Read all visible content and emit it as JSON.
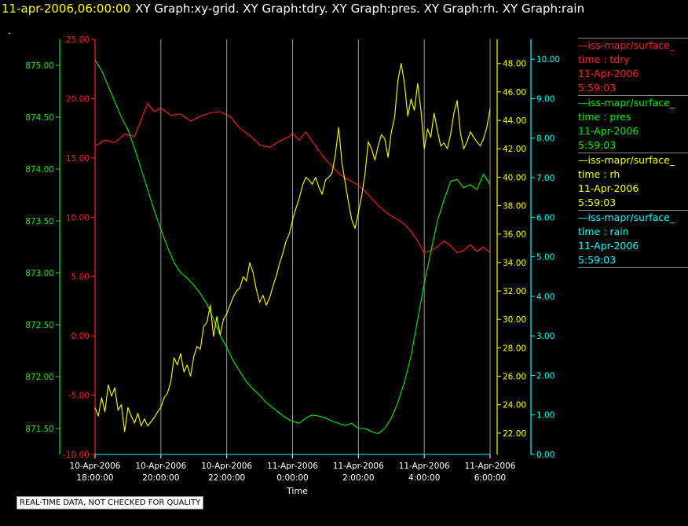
{
  "header": {
    "timestamp": "11-apr-2006,06:00:00",
    "titles": "XY Graph:xy-grid.  XY Graph:tdry.  XY Graph:pres.  XY Graph:rh.  XY Graph:rain",
    "mark": "."
  },
  "legend": [
    {
      "name": "iss-mapr/surface_",
      "line2": "time : tdry",
      "line3": "11-Apr-2006",
      "line4": "5:59:03",
      "color": "#ff2020"
    },
    {
      "name": "iss-mapr/surface_",
      "line2": "time : pres",
      "line3": "11-Apr-2006",
      "line4": "5:59:03",
      "color": "#00ee00"
    },
    {
      "name": "iss-mapr/surface_",
      "line2": "time : rh",
      "line3": "11-Apr-2006",
      "line4": "5:59:03",
      "color": "#ffff00"
    },
    {
      "name": "iss-mapr/surface_",
      "line2": "time : rain",
      "line3": "11-Apr-2006",
      "line4": "5:59:03",
      "color": "#00ffff"
    }
  ],
  "disclaimer": "REAL-TIME DATA, NOT CHECKED FOR QUALITY",
  "chart_data": {
    "type": "line",
    "xlabel": "Time",
    "xlim": [
      0,
      12
    ],
    "x_unit": "hours since 10-Apr-2006 18:00:00",
    "x_ticks": [
      {
        "x": 0,
        "date": "10-Apr-2006",
        "time": "18:00:00"
      },
      {
        "x": 2,
        "date": "10-Apr-2006",
        "time": "20:00:00"
      },
      {
        "x": 4,
        "date": "10-Apr-2006",
        "time": "22:00:00"
      },
      {
        "x": 6,
        "date": "11-Apr-2006",
        "time": "0:00:00"
      },
      {
        "x": 8,
        "date": "11-Apr-2006",
        "time": "2:00:00"
      },
      {
        "x": 10,
        "date": "11-Apr-2006",
        "time": "4:00:00"
      },
      {
        "x": 12,
        "date": "11-Apr-2006",
        "time": "6:00:00"
      }
    ],
    "axes": [
      {
        "id": "pres",
        "color": "#00ee00",
        "ylim": [
          871.25,
          875.25
        ],
        "side": "left-outer",
        "ticks": [
          "871.50",
          "872.00",
          "872.50",
          "873.00",
          "873.50",
          "874.00",
          "874.50",
          "875.00"
        ]
      },
      {
        "id": "tdry",
        "color": "#ff2020",
        "ylim": [
          -10,
          25
        ],
        "side": "left-inner",
        "ticks": [
          "-10.00",
          "-5.00",
          "0.00",
          "5.00",
          "10.00",
          "15.00",
          "20.00",
          "25.00"
        ]
      },
      {
        "id": "rh",
        "color": "#ffff00",
        "ylim": [
          20.5,
          49.7
        ],
        "side": "right-inner",
        "ticks": [
          "22.00",
          "24.00",
          "26.00",
          "28.00",
          "30.00",
          "32.00",
          "34.00",
          "36.00",
          "38.00",
          "40.00",
          "42.00",
          "44.00",
          "46.00",
          "48.00"
        ]
      },
      {
        "id": "rain",
        "color": "#00ffff",
        "ylim": [
          0,
          10.5
        ],
        "side": "right-outer",
        "ticks": [
          "0.00",
          "1.00",
          "2.00",
          "3.00",
          "4.00",
          "5.00",
          "6.00",
          "7.00",
          "8.00",
          "9.00",
          "10.00"
        ]
      }
    ],
    "series": [
      {
        "axis": "tdry",
        "color": "#ff2020",
        "x": [
          0,
          0.3,
          0.6,
          0.9,
          1.2,
          1.4,
          1.6,
          1.8,
          2.0,
          2.3,
          2.6,
          2.9,
          3.2,
          3.5,
          3.8,
          4.1,
          4.4,
          4.7,
          5.0,
          5.3,
          5.6,
          5.9,
          6.0,
          6.2,
          6.4,
          6.6,
          6.8,
          7.0,
          7.2,
          7.4,
          7.6,
          7.8,
          8.0,
          8.2,
          8.4,
          8.6,
          8.8,
          9.0,
          9.2,
          9.4,
          9.6,
          9.8,
          10.0,
          10.2,
          10.4,
          10.6,
          10.8,
          11.0,
          11.2,
          11.4,
          11.6,
          11.8,
          12.0
        ],
        "y": [
          16.0,
          16.5,
          16.3,
          17.0,
          16.8,
          18.2,
          19.6,
          18.9,
          19.2,
          18.6,
          18.7,
          18.1,
          18.5,
          18.8,
          18.9,
          18.5,
          17.5,
          16.9,
          16.1,
          15.9,
          16.4,
          16.8,
          17.1,
          16.5,
          17.2,
          16.4,
          15.6,
          14.9,
          14.3,
          13.7,
          13.3,
          13.0,
          12.7,
          12.2,
          11.6,
          11.0,
          10.5,
          10.1,
          9.8,
          9.4,
          8.8,
          8.0,
          7.0,
          7.2,
          7.5,
          8.0,
          7.6,
          7.0,
          7.2,
          7.7,
          7.1,
          7.5,
          7.0
        ]
      },
      {
        "axis": "pres",
        "color": "#00ee00",
        "x": [
          0,
          0.2,
          0.4,
          0.6,
          0.8,
          1.0,
          1.2,
          1.4,
          1.6,
          1.8,
          2.0,
          2.2,
          2.4,
          2.6,
          2.8,
          3.0,
          3.2,
          3.4,
          3.6,
          3.8,
          4.0,
          4.2,
          4.4,
          4.6,
          4.8,
          5.0,
          5.2,
          5.4,
          5.6,
          5.8,
          6.0,
          6.2,
          6.4,
          6.6,
          6.8,
          7.0,
          7.2,
          7.4,
          7.6,
          7.8,
          8.0,
          8.2,
          8.4,
          8.6,
          8.8,
          9.0,
          9.2,
          9.4,
          9.6,
          9.8,
          10.0,
          10.2,
          10.4,
          10.6,
          10.8,
          11.0,
          11.2,
          11.4,
          11.6,
          11.8,
          12.0
        ],
        "y": [
          875.05,
          874.95,
          874.8,
          874.65,
          874.5,
          874.38,
          874.2,
          874.0,
          873.8,
          873.6,
          873.42,
          873.25,
          873.1,
          873.0,
          872.95,
          872.88,
          872.8,
          872.7,
          872.55,
          872.4,
          872.28,
          872.15,
          872.05,
          871.95,
          871.88,
          871.82,
          871.75,
          871.7,
          871.65,
          871.6,
          871.57,
          871.55,
          871.6,
          871.63,
          871.62,
          871.6,
          871.57,
          871.55,
          871.53,
          871.55,
          871.5,
          871.5,
          871.47,
          871.45,
          871.5,
          871.6,
          871.75,
          871.95,
          872.2,
          872.55,
          872.9,
          873.2,
          873.5,
          873.7,
          873.88,
          873.9,
          873.82,
          873.85,
          873.8,
          873.95,
          873.85
        ]
      },
      {
        "axis": "rh",
        "color": "#ffff00",
        "x": [
          0,
          0.1,
          0.2,
          0.3,
          0.4,
          0.5,
          0.6,
          0.7,
          0.8,
          0.9,
          1.0,
          1.1,
          1.2,
          1.3,
          1.4,
          1.5,
          1.6,
          1.7,
          1.8,
          1.9,
          2.0,
          2.1,
          2.2,
          2.3,
          2.4,
          2.5,
          2.6,
          2.7,
          2.8,
          2.9,
          3.0,
          3.1,
          3.2,
          3.3,
          3.4,
          3.5,
          3.6,
          3.7,
          3.8,
          3.9,
          4.0,
          4.1,
          4.2,
          4.3,
          4.4,
          4.5,
          4.6,
          4.7,
          4.8,
          4.9,
          5.0,
          5.1,
          5.2,
          5.3,
          5.4,
          5.5,
          5.6,
          5.7,
          5.8,
          5.9,
          6.0,
          6.1,
          6.2,
          6.3,
          6.4,
          6.5,
          6.6,
          6.7,
          6.8,
          6.9,
          7.0,
          7.1,
          7.2,
          7.3,
          7.4,
          7.5,
          7.6,
          7.7,
          7.8,
          7.9,
          8.0,
          8.1,
          8.2,
          8.3,
          8.4,
          8.5,
          8.6,
          8.7,
          8.8,
          8.9,
          9.0,
          9.1,
          9.2,
          9.3,
          9.4,
          9.5,
          9.6,
          9.7,
          9.8,
          9.9,
          10.0,
          10.1,
          10.2,
          10.3,
          10.4,
          10.5,
          10.6,
          10.7,
          10.8,
          10.9,
          11.0,
          11.1,
          11.2,
          11.3,
          11.4,
          11.5,
          11.6,
          11.7,
          11.8,
          11.9,
          12.0
        ],
        "y": [
          23.8,
          23.2,
          24.5,
          23.5,
          25.4,
          24.6,
          25.2,
          23.6,
          24.0,
          22.1,
          23.8,
          23.2,
          22.7,
          23.4,
          22.5,
          23.0,
          22.5,
          22.8,
          23.1,
          23.5,
          23.8,
          24.5,
          24.8,
          25.6,
          27.3,
          26.8,
          27.6,
          26.3,
          26.8,
          26.0,
          27.4,
          28.1,
          27.9,
          29.5,
          29.8,
          31.0,
          28.8,
          30.2,
          28.9,
          30.0,
          30.4,
          31.0,
          31.6,
          32.0,
          32.2,
          33.0,
          32.7,
          34.0,
          33.3,
          32.1,
          31.2,
          31.7,
          31.0,
          31.5,
          32.3,
          33.0,
          33.9,
          34.6,
          35.5,
          36.0,
          37.0,
          37.8,
          38.5,
          39.4,
          40.0,
          39.8,
          39.5,
          40.0,
          39.3,
          38.8,
          39.8,
          40.0,
          40.3,
          41.6,
          43.5,
          41.0,
          39.6,
          38.2,
          37.0,
          36.4,
          37.5,
          38.7,
          40.2,
          42.5,
          42.0,
          41.2,
          42.2,
          43.0,
          42.7,
          41.4,
          43.2,
          44.2,
          46.8,
          48.0,
          46.6,
          44.3,
          45.5,
          44.7,
          46.6,
          44.7,
          42.0,
          43.4,
          42.8,
          44.5,
          43.3,
          42.2,
          42.4,
          42.0,
          43.0,
          44.5,
          45.4,
          43.1,
          42.0,
          42.5,
          43.2,
          42.8,
          42.5,
          42.2,
          42.7,
          43.5,
          44.8
        ]
      },
      {
        "axis": "rain",
        "color": "#00ffff",
        "x": [
          0,
          12
        ],
        "y": [
          0.0,
          0.0
        ]
      }
    ]
  }
}
